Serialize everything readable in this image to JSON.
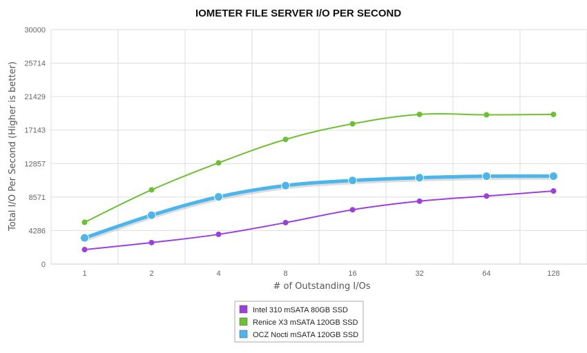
{
  "chart_data": {
    "type": "line",
    "title": "IOMETER FILE SERVER I/O PER SECOND",
    "xlabel": "# of Outstanding I/Os",
    "ylabel": "Total I/O Per Second (Higher is better)",
    "categories": [
      "1",
      "2",
      "4",
      "8",
      "16",
      "32",
      "64",
      "128"
    ],
    "ylim": [
      0,
      30000
    ],
    "yticks": [
      "0",
      "4286",
      "8571",
      "12857",
      "17143",
      "21429",
      "25714",
      "30000"
    ],
    "grid": true,
    "legend_position": "bottom-center",
    "series": [
      {
        "name": "Intel 310 mSATA 80GB SSD",
        "color": "#9b3fe0",
        "values": [
          1850,
          2750,
          3800,
          5300,
          6950,
          8050,
          8700,
          9350
        ]
      },
      {
        "name": "Renice X3 mSATA 120GB SSD",
        "color": "#6cc12f",
        "values": [
          5350,
          9500,
          12950,
          15950,
          17950,
          19150,
          19100,
          19150
        ]
      },
      {
        "name": "OCZ Nocti mSATA 120GB SSD",
        "color": "#4ab6ec",
        "values": [
          3350,
          6250,
          8600,
          10050,
          10700,
          11050,
          11250,
          11250
        ]
      }
    ]
  }
}
